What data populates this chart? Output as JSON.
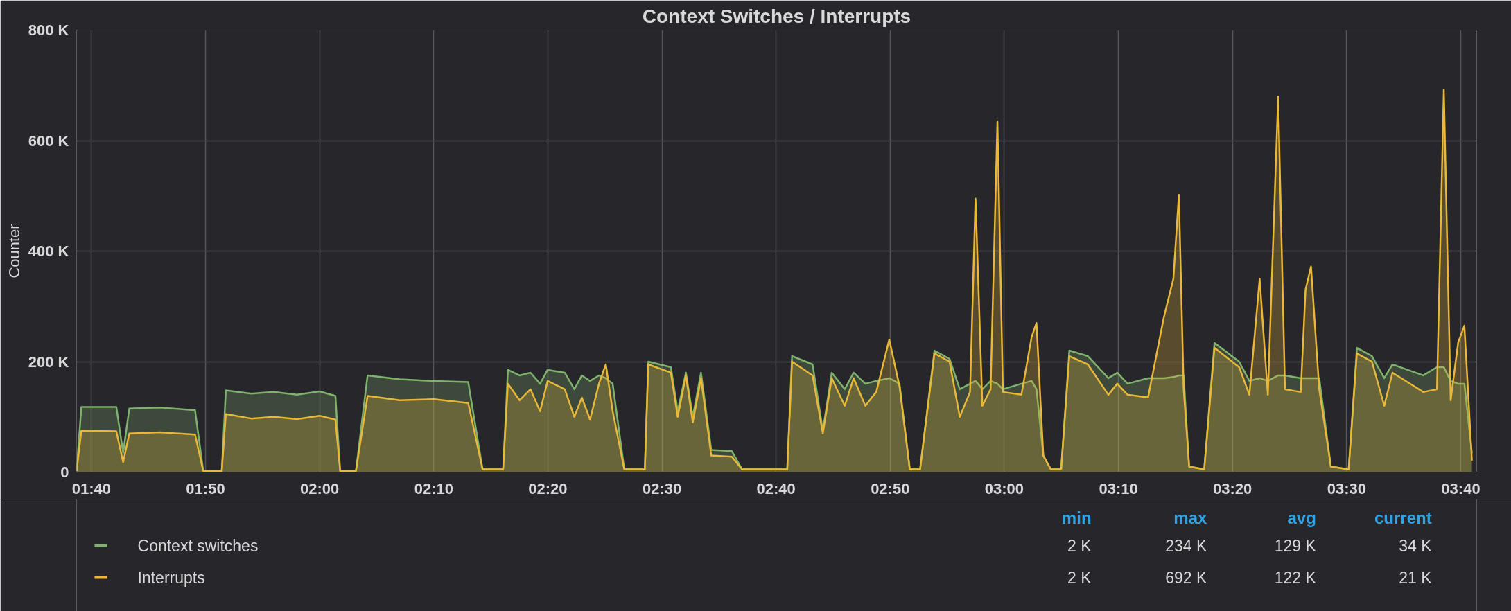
{
  "chart_data": {
    "type": "area",
    "title": "Context Switches / Interrupts",
    "ylabel": "Counter",
    "x": [
      1.645,
      1.652,
      1.703,
      1.713,
      1.722,
      1.767,
      1.818,
      1.83,
      1.857,
      1.863,
      1.9,
      1.933,
      1.967,
      2.0,
      2.023,
      2.03,
      2.053,
      2.07,
      2.117,
      2.167,
      2.217,
      2.238,
      2.268,
      2.275,
      2.292,
      2.308,
      2.322,
      2.333,
      2.358,
      2.372,
      2.383,
      2.395,
      2.408,
      2.418,
      2.428,
      2.445,
      2.475,
      2.48,
      2.513,
      2.523,
      2.535,
      2.545,
      2.557,
      2.572,
      2.602,
      2.617,
      2.683,
      2.69,
      2.72,
      2.735,
      2.748,
      2.767,
      2.78,
      2.797,
      2.813,
      2.832,
      2.847,
      2.862,
      2.877,
      2.898,
      2.92,
      2.935,
      2.95,
      2.958,
      2.968,
      2.98,
      2.99,
      2.998,
      3.025,
      3.04,
      3.047,
      3.057,
      3.068,
      3.083,
      3.095,
      3.122,
      3.152,
      3.165,
      3.18,
      3.21,
      3.233,
      3.247,
      3.255,
      3.262,
      3.27,
      3.292,
      3.307,
      3.343,
      3.358,
      3.373,
      3.385,
      3.4,
      3.41,
      3.433,
      3.44,
      3.448,
      3.46,
      3.477,
      3.503,
      3.515,
      3.537,
      3.555,
      3.567,
      3.612,
      3.632,
      3.642,
      3.652,
      3.663,
      3.672,
      3.683
    ],
    "series": [
      {
        "name": "Context switches",
        "color": "#7eb26d",
        "values": [
          2000,
          118000,
          118000,
          35000,
          115000,
          117000,
          112000,
          2000,
          2000,
          148000,
          142000,
          145000,
          140000,
          146000,
          138000,
          2000,
          2000,
          175000,
          168000,
          165000,
          163000,
          5000,
          5000,
          185000,
          175000,
          180000,
          160000,
          185000,
          180000,
          150000,
          175000,
          165000,
          175000,
          170000,
          160000,
          5000,
          5000,
          200000,
          190000,
          110000,
          180000,
          100000,
          180000,
          40000,
          38000,
          5000,
          5000,
          210000,
          195000,
          75000,
          180000,
          150000,
          180000,
          160000,
          165000,
          170000,
          160000,
          5000,
          5000,
          220000,
          205000,
          150000,
          160000,
          165000,
          150000,
          165000,
          160000,
          150000,
          160000,
          165000,
          150000,
          30000,
          5000,
          5000,
          220000,
          210000,
          170000,
          180000,
          160000,
          170000,
          170000,
          172000,
          175000,
          175000,
          10000,
          5000,
          234000,
          200000,
          165000,
          170000,
          165000,
          175000,
          175000,
          170000,
          170000,
          170000,
          170000,
          10000,
          5000,
          225000,
          210000,
          170000,
          195000,
          175000,
          190000,
          190000,
          165000,
          160000,
          160000,
          34000
        ]
      },
      {
        "name": "Interrupts",
        "color": "#eab839",
        "values": [
          2000,
          75000,
          74000,
          18000,
          70000,
          72000,
          68000,
          2000,
          2000,
          105000,
          97000,
          100000,
          96000,
          102000,
          95000,
          2000,
          2000,
          138000,
          130000,
          132000,
          125000,
          5000,
          5000,
          160000,
          130000,
          150000,
          110000,
          165000,
          150000,
          100000,
          135000,
          95000,
          160000,
          195000,
          110000,
          5000,
          5000,
          195000,
          180000,
          100000,
          175000,
          90000,
          170000,
          30000,
          28000,
          5000,
          5000,
          200000,
          175000,
          70000,
          170000,
          120000,
          170000,
          120000,
          145000,
          240000,
          155000,
          5000,
          5000,
          215000,
          200000,
          100000,
          145000,
          495000,
          120000,
          150000,
          635000,
          145000,
          140000,
          245000,
          270000,
          30000,
          5000,
          5000,
          210000,
          195000,
          140000,
          160000,
          140000,
          135000,
          280000,
          350000,
          502000,
          150000,
          10000,
          5000,
          225000,
          190000,
          140000,
          350000,
          140000,
          680000,
          150000,
          145000,
          330000,
          372000,
          150000,
          10000,
          5000,
          215000,
          200000,
          120000,
          180000,
          145000,
          150000,
          692000,
          130000,
          235000,
          265000,
          21000
        ]
      }
    ],
    "xlim": [
      1.645,
      3.69
    ],
    "xticks": [
      {
        "value": 1.6667,
        "label": "01:40"
      },
      {
        "value": 1.8333,
        "label": "01:50"
      },
      {
        "value": 2.0,
        "label": "02:00"
      },
      {
        "value": 2.1667,
        "label": "02:10"
      },
      {
        "value": 2.3333,
        "label": "02:20"
      },
      {
        "value": 2.5,
        "label": "02:30"
      },
      {
        "value": 2.6667,
        "label": "02:40"
      },
      {
        "value": 2.8333,
        "label": "02:50"
      },
      {
        "value": 3.0,
        "label": "03:00"
      },
      {
        "value": 3.1667,
        "label": "03:10"
      },
      {
        "value": 3.3333,
        "label": "03:20"
      },
      {
        "value": 3.5,
        "label": "03:30"
      },
      {
        "value": 3.6667,
        "label": "03:40"
      }
    ],
    "ylim": [
      0,
      800000
    ],
    "yticks": [
      {
        "value": 0,
        "label": "0"
      },
      {
        "value": 200000,
        "label": "200 K"
      },
      {
        "value": 400000,
        "label": "400 K"
      },
      {
        "value": 600000,
        "label": "600 K"
      },
      {
        "value": 800000,
        "label": "800 K"
      }
    ],
    "grid": true,
    "legend": "bottom",
    "annotations": [
      "min",
      "max",
      "avg",
      "current",
      "2 K",
      "234 K",
      "129 K",
      "34 K",
      "2 K",
      "692 K",
      "122 K",
      "21 K"
    ]
  }
}
